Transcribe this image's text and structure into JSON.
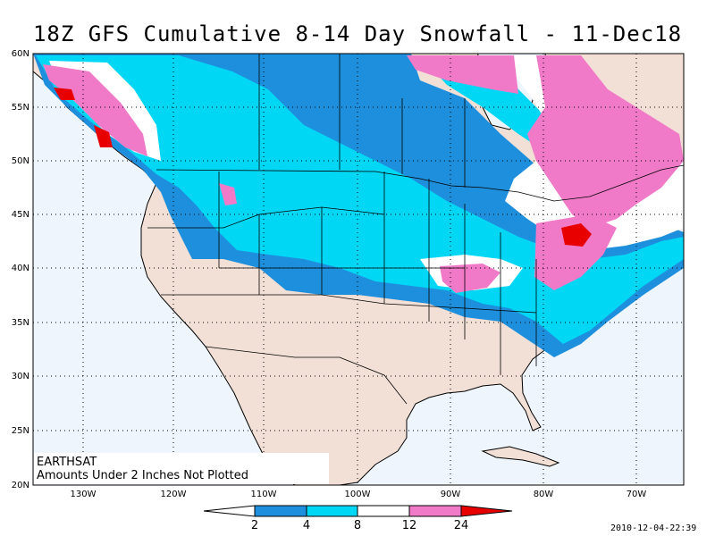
{
  "title": "18Z GFS Cumulative 8-14 Day Snowfall - 11-Dec18",
  "lat_labels": [
    "60N",
    "55N",
    "50N",
    "45N",
    "40N",
    "35N",
    "30N",
    "25N",
    "20N"
  ],
  "lon_labels": [
    "130W",
    "120W",
    "110W",
    "100W",
    "90W",
    "80W",
    "70W"
  ],
  "source_label": "EARTHSAT",
  "note": "Amounts Under 2 Inches Not Plotted",
  "legend_labels": [
    "2",
    "4",
    "8",
    "12",
    "24"
  ],
  "timestamp": "2010-12-04-22:39",
  "colors": {
    "ocean": "#eef5fd",
    "land": "#f2e0d6",
    "band_2_4": "#1e8fdc",
    "band_4_8": "#00d7f5",
    "band_8_12": "#ffffff",
    "band_12_24": "#f07ac8",
    "band_24_plus": "#e80000"
  }
}
